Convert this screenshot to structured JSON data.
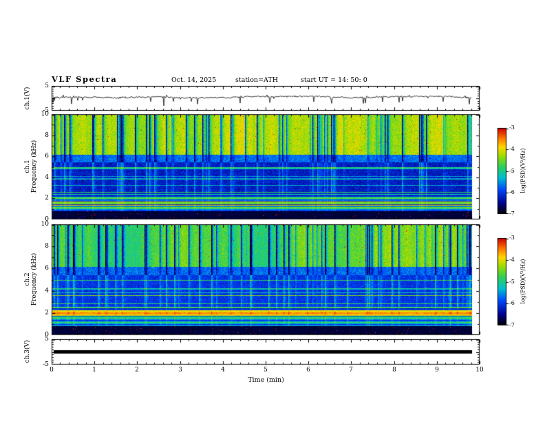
{
  "header": {
    "title": "VLF  Spectra",
    "date": "Oct. 14, 2025",
    "station": "station=ATH",
    "start_ut": "start UT =   14: 50: 0"
  },
  "xaxis": {
    "label": "Time  (min)",
    "ticks": [
      0,
      1,
      2,
      3,
      4,
      5,
      6,
      7,
      8,
      9,
      10
    ],
    "range": [
      0,
      10
    ]
  },
  "panels": {
    "ch1_wave": {
      "ylabel": "ch.1(V)",
      "yticks": [
        5,
        -5
      ],
      "ylim": [
        -5,
        5
      ]
    },
    "spec1": {
      "ylabel_line1": "ch.1",
      "ylabel_line2": "Frequency  (kHz)",
      "yticks": [
        10,
        8,
        6,
        4,
        2,
        0
      ],
      "ylim": [
        0,
        10
      ]
    },
    "spec2": {
      "ylabel_line1": "ch.2",
      "ylabel_line2": "Frequency  (kHz)",
      "yticks": [
        10,
        8,
        6,
        4,
        2,
        0
      ],
      "ylim": [
        0,
        10
      ]
    },
    "ch3_wave": {
      "ylabel": "ch.3(V)",
      "yticks": [
        5,
        -5
      ],
      "ylim": [
        -5,
        5
      ]
    }
  },
  "colorbar": {
    "label": "log(PSD)(V²/Hz)",
    "ticks": [
      -3,
      -4,
      -5,
      -6,
      -7
    ],
    "range": [
      -7,
      -3
    ]
  },
  "colormap_stops": [
    {
      "t": 0.0,
      "color": "#000000"
    },
    {
      "t": 0.12,
      "color": "#00008c"
    },
    {
      "t": 0.28,
      "color": "#0048ff"
    },
    {
      "t": 0.42,
      "color": "#00c0d0"
    },
    {
      "t": 0.55,
      "color": "#2ed058"
    },
    {
      "t": 0.68,
      "color": "#a0dc00"
    },
    {
      "t": 0.78,
      "color": "#ffd800"
    },
    {
      "t": 0.88,
      "color": "#ff7800"
    },
    {
      "t": 1.0,
      "color": "#d00000"
    }
  ],
  "chart_data": [
    {
      "type": "line",
      "panel": "ch.1 time series",
      "ylabel": "ch.1(V)",
      "ylim": [
        -5,
        5
      ],
      "xlim": [
        0,
        10
      ],
      "description": "Noisy voltage trace centered near +0.5 V with dense small fluctuations and frequent sharp downward spikes reaching about -4 V over the full 0-10 min record."
    },
    {
      "type": "heatmap",
      "panel": "ch.1 spectrogram",
      "xlabel": "Time (min)",
      "xlim": [
        0,
        10
      ],
      "ylabel": "Frequency (kHz)",
      "ylim": [
        0,
        10
      ],
      "value_label": "log(PSD)(V²/Hz)",
      "value_range": [
        -7,
        -3
      ],
      "features": [
        "6-10 kHz: green/yellow background near -4.5 cut by many narrow dark-blue vertical streaks (sferic bursts), sparse red speckles",
        "5.4-6.2 kHz: darkest blue band near -6.5",
        "2.6-5.4 kHz: dark blue near -6.2 with thin brighter cyan horizontal lines",
        "0.8-2.6 kHz: strong horizontal banding alternating green/cyan with occasional yellow lines near -4",
        "0-0.8 kHz: near-black around -6.8 with sparse red speckles"
      ]
    },
    {
      "type": "heatmap",
      "panel": "ch.2 spectrogram",
      "xlabel": "Time (min)",
      "xlim": [
        0,
        10
      ],
      "ylabel": "Frequency (kHz)",
      "ylim": [
        0,
        10
      ],
      "value_label": "log(PSD)(V²/Hz)",
      "value_range": [
        -7,
        -3
      ],
      "features": [
        "6-10 kHz: green/cyan background near -4.7 with dense dark-blue vertical streaks",
        "5.4-6.2 kHz: dark blue band",
        "2.6-5.4 kHz: blue with thin cyan horizontal striping",
        "1.7-2.2 kHz: prominent yellow horizontal band near -3.8",
        "0.8-2.6 kHz: horizontal green/cyan banding",
        "0-0.8 kHz: near-black with sparse red speckles"
      ]
    },
    {
      "type": "line",
      "panel": "ch.3 time series",
      "ylabel": "ch.3(V)",
      "ylim": [
        -5,
        5
      ],
      "xlim": [
        0,
        10
      ],
      "description": "Flat thick black line at 0 V for the whole record (channel flat / off)."
    }
  ]
}
